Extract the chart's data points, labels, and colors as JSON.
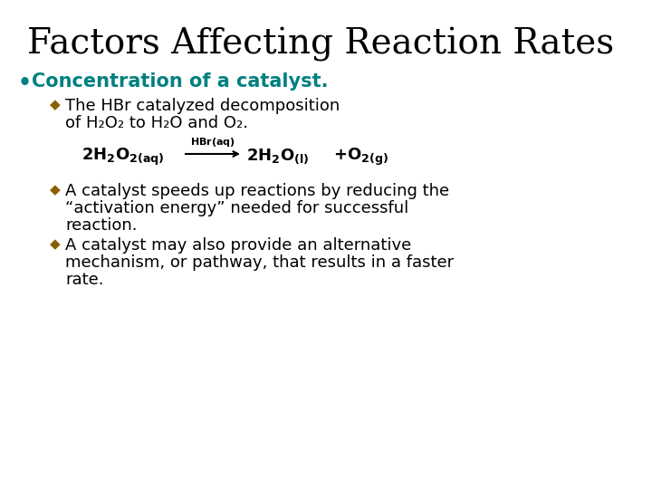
{
  "title": "Factors Affecting Reaction Rates",
  "title_color": "#000000",
  "title_fontsize": 28,
  "background_color": "#ffffff",
  "bullet1_color": "#008080",
  "bullet1_text": "Concentration of a catalyst.",
  "bullet1_fontsize": 15,
  "sub_bullet_color": "#8B6000",
  "sub_bullet_fontsize": 13,
  "equation_fontsize": 13,
  "sub1_line1": "The HBr catalyzed decomposition",
  "sub1_line2": "of H₂O₂ to H₂O and O₂.",
  "sub2_line1": "A catalyst speeds up reactions by reducing the",
  "sub2_line2": "“activation energy” needed for successful",
  "sub2_line3": "reaction.",
  "sub3_line1": "A catalyst may also provide an alternative",
  "sub3_line2": "mechanism, or pathway, that results in a faster",
  "sub3_line3": "rate."
}
